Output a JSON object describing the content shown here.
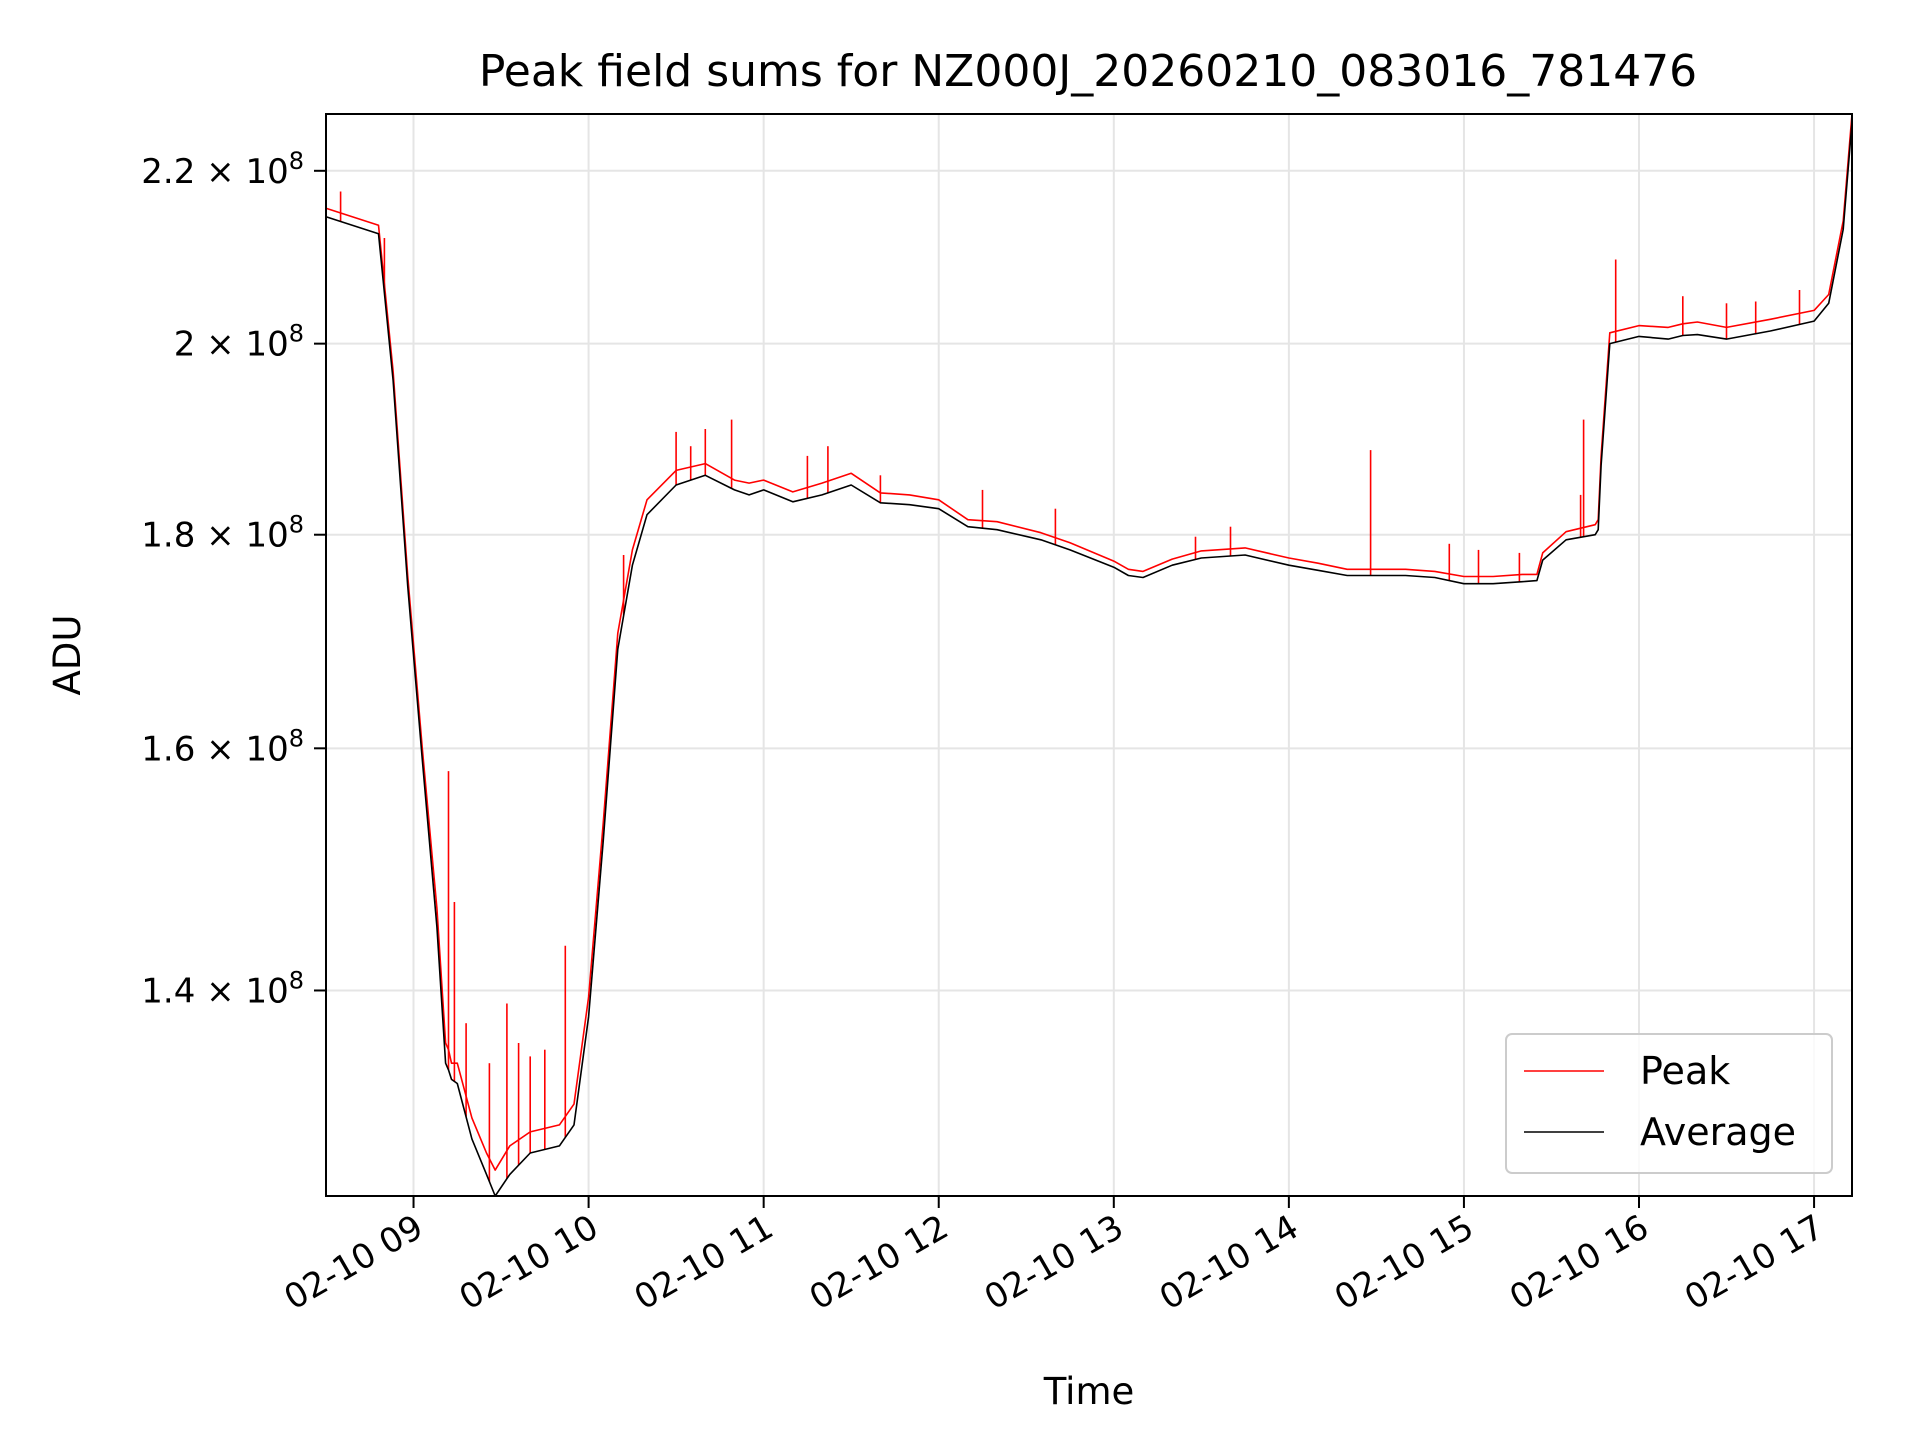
{
  "chart_data": {
    "type": "line",
    "title": "Peak field sums for NZ000J_20260210_083016_781476",
    "xlabel": "Time",
    "ylabel": "ADU",
    "y_scale": "log",
    "xlim": [
      "2026-02-10 08:30",
      "2026-02-10 17:13"
    ],
    "ylim": [
      125000000,
      227000000
    ],
    "x_ticks": [
      "02-10 09",
      "02-10 10",
      "02-10 11",
      "02-10 12",
      "02-10 13",
      "02-10 14",
      "02-10 15",
      "02-10 16",
      "02-10 17"
    ],
    "y_ticks": [
      {
        "value": 140000000,
        "mantissa": "1.4",
        "exponent": "8"
      },
      {
        "value": 160000000,
        "mantissa": "1.6",
        "exponent": "8"
      },
      {
        "value": 180000000,
        "mantissa": "1.8",
        "exponent": "8"
      },
      {
        "value": 200000000,
        "mantissa": "2",
        "exponent": "8"
      },
      {
        "value": 220000000,
        "mantissa": "2.2",
        "exponent": "8"
      }
    ],
    "grid": true,
    "legend_position": "lower-right",
    "series": [
      {
        "name": "Peak",
        "color": "#ff0000"
      },
      {
        "name": "Average",
        "color": "#000000"
      }
    ],
    "time_keys": [
      "08:30",
      "08:48",
      "08:53",
      "08:58",
      "09:03",
      "09:08",
      "09:11",
      "09:12",
      "09:13",
      "09:15",
      "09:20",
      "09:25",
      "09:28",
      "09:33",
      "09:40",
      "09:50",
      "09:55",
      "10:00",
      "10:05",
      "10:10",
      "10:15",
      "10:20",
      "10:30",
      "10:40",
      "10:50",
      "10:55",
      "11:00",
      "11:10",
      "11:20",
      "11:30",
      "11:40",
      "11:50",
      "12:00",
      "12:10",
      "12:20",
      "12:35",
      "12:45",
      "13:00",
      "13:05",
      "13:10",
      "13:20",
      "13:30",
      "13:45",
      "14:00",
      "14:10",
      "14:20",
      "14:30",
      "14:40",
      "14:50",
      "15:00",
      "15:10",
      "15:20",
      "15:25",
      "15:27",
      "15:35",
      "15:45",
      "15:46",
      "15:47",
      "15:50",
      "16:00",
      "16:10",
      "16:15",
      "16:20",
      "16:30",
      "16:45",
      "17:00",
      "17:05",
      "17:10",
      "17:13"
    ],
    "average_values": [
      214500000,
      212500000,
      196000000,
      175000000,
      159000000,
      145000000,
      134500000,
      134000000,
      133300000,
      133000000,
      129000000,
      126500000,
      125000000,
      126500000,
      128000000,
      128500000,
      130000000,
      138000000,
      152000000,
      169000000,
      177000000,
      182000000,
      185000000,
      186000000,
      184500000,
      184000000,
      184500000,
      183300000,
      184000000,
      185000000,
      183200000,
      183000000,
      182600000,
      180800000,
      180500000,
      179500000,
      178500000,
      176800000,
      176000000,
      175800000,
      177000000,
      177700000,
      178000000,
      177000000,
      176500000,
      176000000,
      176000000,
      176000000,
      175800000,
      175200000,
      175200000,
      175400000,
      175500000,
      177500000,
      179500000,
      180000000,
      180500000,
      187000000,
      200000000,
      200800000,
      200500000,
      200900000,
      201000000,
      200500000,
      201400000,
      202500000,
      204500000,
      213000000,
      226000000
    ],
    "peak_values": [
      215500000,
      213500000,
      197000000,
      176000000,
      160000000,
      146500000,
      136000000,
      135500000,
      134500000,
      134500000,
      130500000,
      128000000,
      126800000,
      128500000,
      129500000,
      130000000,
      131500000,
      139500000,
      153500000,
      170500000,
      178500000,
      183500000,
      186500000,
      187200000,
      185500000,
      185200000,
      185500000,
      184300000,
      185200000,
      186200000,
      184200000,
      184000000,
      183500000,
      181500000,
      181300000,
      180200000,
      179200000,
      177400000,
      176600000,
      176400000,
      177600000,
      178400000,
      178700000,
      177700000,
      177200000,
      176600000,
      176600000,
      176600000,
      176400000,
      175900000,
      175900000,
      176100000,
      176100000,
      178200000,
      180300000,
      181000000,
      181500000,
      188000000,
      201200000,
      202000000,
      201800000,
      202200000,
      202400000,
      201800000,
      202700000,
      203700000,
      205500000,
      214000000,
      227000000
    ],
    "peak_spikes": [
      {
        "time": "08:35",
        "value": 217500000
      },
      {
        "time": "08:50",
        "value": 212000000
      },
      {
        "time": "09:12",
        "value": 158000000
      },
      {
        "time": "09:14",
        "value": 147000000
      },
      {
        "time": "09:18",
        "value": 137500000
      },
      {
        "time": "09:26",
        "value": 134500000
      },
      {
        "time": "09:32",
        "value": 139000000
      },
      {
        "time": "09:36",
        "value": 136000000
      },
      {
        "time": "09:40",
        "value": 135000000
      },
      {
        "time": "09:45",
        "value": 135500000
      },
      {
        "time": "09:52",
        "value": 143500000
      },
      {
        "time": "10:12",
        "value": 178000000
      },
      {
        "time": "10:30",
        "value": 190500000
      },
      {
        "time": "10:35",
        "value": 189000000
      },
      {
        "time": "10:40",
        "value": 190800000
      },
      {
        "time": "10:49",
        "value": 191800000
      },
      {
        "time": "11:15",
        "value": 188000000
      },
      {
        "time": "11:22",
        "value": 189000000
      },
      {
        "time": "11:40",
        "value": 186000000
      },
      {
        "time": "12:15",
        "value": 184500000
      },
      {
        "time": "12:40",
        "value": 182600000
      },
      {
        "time": "13:28",
        "value": 179800000
      },
      {
        "time": "13:40",
        "value": 180800000
      },
      {
        "time": "14:28",
        "value": 188600000
      },
      {
        "time": "14:55",
        "value": 179100000
      },
      {
        "time": "15:05",
        "value": 178500000
      },
      {
        "time": "15:19",
        "value": 178200000
      },
      {
        "time": "15:40",
        "value": 184000000
      },
      {
        "time": "15:41",
        "value": 191800000
      },
      {
        "time": "15:52",
        "value": 209500000
      },
      {
        "time": "16:15",
        "value": 205300000
      },
      {
        "time": "16:30",
        "value": 204500000
      },
      {
        "time": "16:40",
        "value": 204700000
      },
      {
        "time": "16:55",
        "value": 206000000
      }
    ]
  }
}
